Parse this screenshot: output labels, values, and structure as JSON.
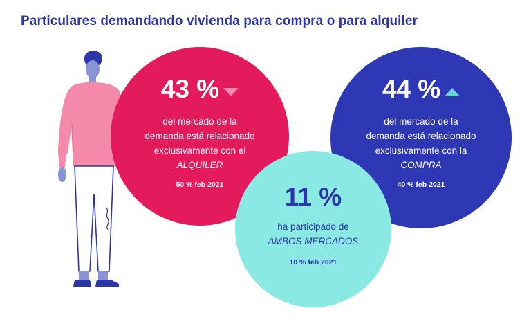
{
  "title": "Particulares demandando vivienda para compra o para alquiler",
  "rent": {
    "percent": "43 %",
    "trend": "down",
    "lines": [
      "del mercado de la",
      "demanda está relacionado",
      "exclusivamente con el"
    ],
    "highlight": "ALQUILER",
    "note": "50 % feb 2021"
  },
  "buy": {
    "percent": "44 %",
    "trend": "up",
    "lines": [
      "del mercado de la",
      "demanda está relacionado",
      "exclusivamente con la"
    ],
    "highlight": "COMPRA",
    "note": "40 % feb 2021"
  },
  "both": {
    "percent": "11 %",
    "lines": [
      "ha participado de"
    ],
    "highlight": "AMBOS MERCADOS",
    "note": "10 % feb 2021"
  },
  "colors": {
    "title": "#2b36a8",
    "rent_circle": "#e31b5c",
    "buy_circle": "#2e38b4",
    "both_circle": "#8be9e3",
    "down_arrow": "#f48bb0",
    "up_arrow": "#5fd9d1"
  },
  "illustration": "person-standing-illustration"
}
